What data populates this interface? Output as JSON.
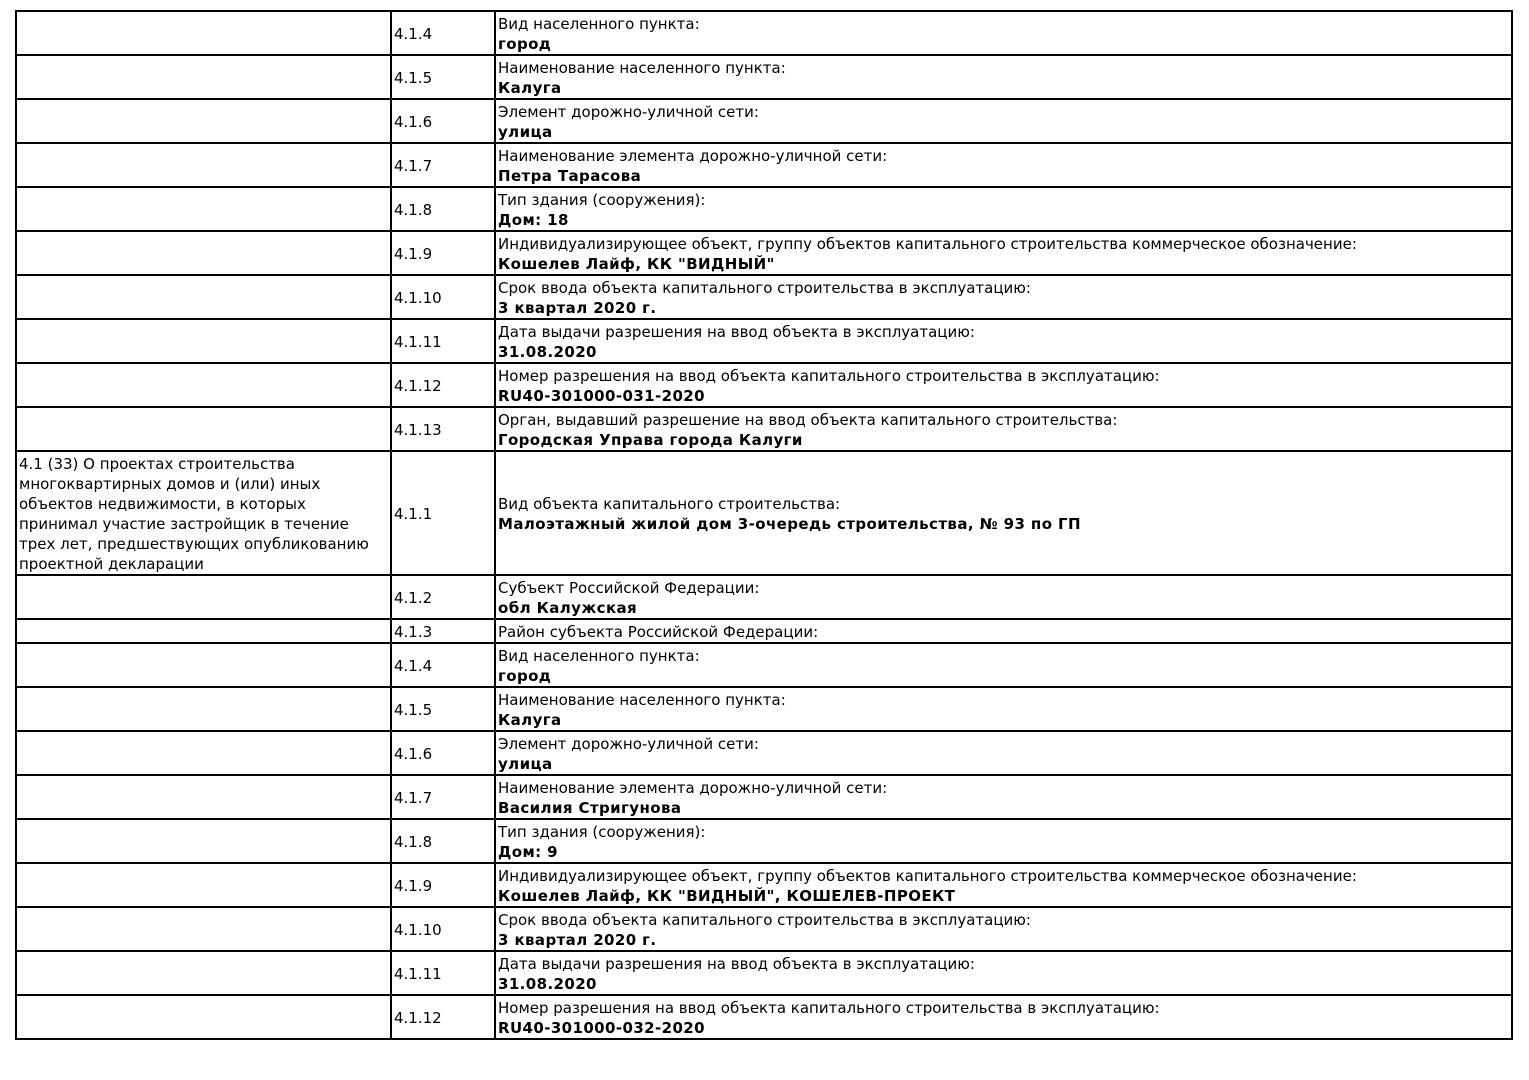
{
  "table": {
    "rows": [
      {
        "code": "4.1.4",
        "label": "Вид населенного пункта:",
        "value": "город"
      },
      {
        "code": "4.1.5",
        "label": "Наименование населенного пункта:",
        "value": "Калуга"
      },
      {
        "code": "4.1.6",
        "label": "Элемент дорожно-уличной сети:",
        "value": "улица"
      },
      {
        "code": "4.1.7",
        "label": "Наименование элемента дорожно-уличной сети:",
        "value": "Петра Тарасова"
      },
      {
        "code": "4.1.8",
        "label": "Тип здания (сооружения):",
        "value": "Дом: 18"
      },
      {
        "code": "4.1.9",
        "label": "Индивидуализирующее объект, группу объектов капитального строительства коммерческое обозначение:",
        "value": "Кошелев Лайф, КК \"ВИДНЫЙ\""
      },
      {
        "code": "4.1.10",
        "label": "Срок ввода объекта капитального строительства в эксплуатацию:",
        "value": "3 квартал 2020 г."
      },
      {
        "code": "4.1.11",
        "label": "Дата выдачи разрешения на ввод объекта в эксплуатацию:",
        "value": "31.08.2020"
      },
      {
        "code": "4.1.12",
        "label": "Номер разрешения на ввод объекта капитального строительства в эксплуатацию:",
        "value": "RU40-301000-031-2020"
      },
      {
        "code": "4.1.13",
        "label": "Орган, выдавший разрешение на ввод объекта капитального строительства:",
        "value": "Городская Управа города Калуги"
      },
      {
        "section": "4.1 (33) О проектах строительства многоквартирных домов и (или) иных объектов недвижимости, в которых принимал участие застройщик в течение трех лет, предшествующих опубликованию проектной декларации",
        "code": "4.1.1",
        "label": "Вид объекта капитального строительства:",
        "value": "Малоэтажный жилой дом 3-очередь строительства, № 93 по ГП"
      },
      {
        "code": "4.1.2",
        "label": "Субъект Российской Федерации:",
        "value": "обл Калужская"
      },
      {
        "code": "4.1.3",
        "label": "Район субъекта Российской Федерации:"
      },
      {
        "code": "4.1.4",
        "label": "Вид населенного пункта:",
        "value": "город"
      },
      {
        "code": "4.1.5",
        "label": "Наименование населенного пункта:",
        "value": "Калуга"
      },
      {
        "code": "4.1.6",
        "label": "Элемент дорожно-уличной сети:",
        "value": "улица"
      },
      {
        "code": "4.1.7",
        "label": "Наименование элемента дорожно-уличной сети:",
        "value": "Василия Стригунова"
      },
      {
        "code": "4.1.8",
        "label": "Тип здания (сооружения):",
        "value": "Дом: 9"
      },
      {
        "code": "4.1.9",
        "label": "Индивидуализирующее объект, группу объектов капитального строительства коммерческое обозначение:",
        "value": "Кошелев Лайф, КК \"ВИДНЫЙ\", КОШЕЛЕВ-ПРОЕКТ"
      },
      {
        "code": "4.1.10",
        "label": "Срок ввода объекта капитального строительства в эксплуатацию:",
        "value": "3 квартал 2020 г."
      },
      {
        "code": "4.1.11",
        "label": "Дата выдачи разрешения на ввод объекта в эксплуатацию:",
        "value": "31.08.2020"
      },
      {
        "code": "4.1.12",
        "label": "Номер разрешения на ввод объекта капитального строительства в эксплуатацию:",
        "value": "RU40-301000-032-2020"
      }
    ]
  }
}
